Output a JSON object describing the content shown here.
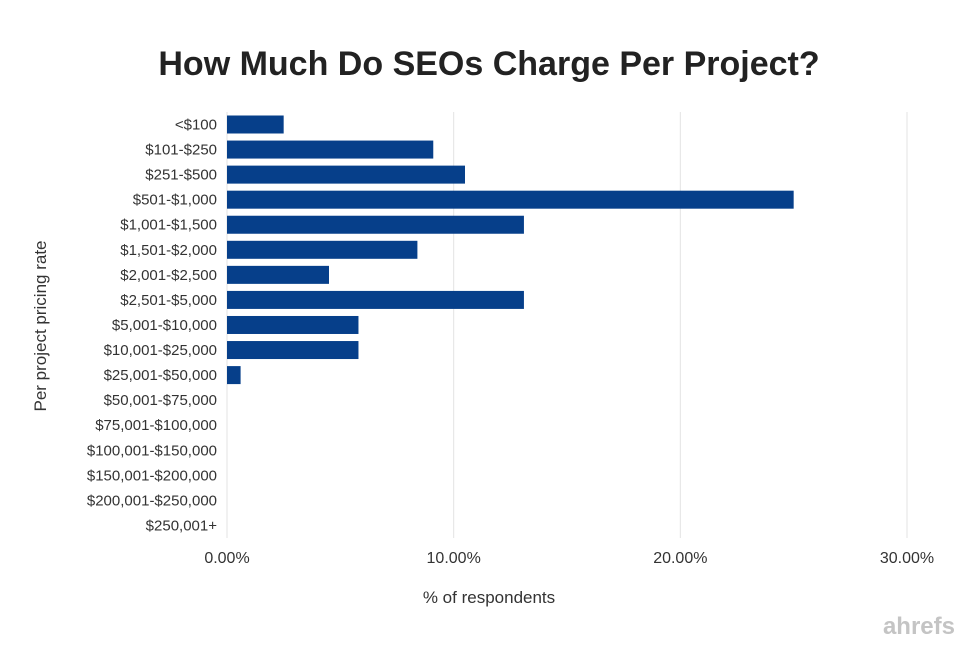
{
  "chart_data": {
    "type": "bar",
    "orientation": "horizontal",
    "title": "How Much Do SEOs Charge Per Project?",
    "xlabel": "% of respondents",
    "ylabel": "Per project pricing rate",
    "categories": [
      "<$100",
      "$101-$250",
      "$251-$500",
      "$501-$1,000",
      "$1,001-$1,500",
      "$1,501-$2,000",
      "$2,001-$2,500",
      "$2,501-$5,000",
      "$5,001-$10,000",
      "$10,001-$25,000",
      "$25,001-$50,000",
      "$50,001-$75,000",
      "$75,001-$100,000",
      "$100,001-$150,000",
      "$150,001-$200,000",
      "$200,001-$250,000",
      "$250,001+"
    ],
    "values": [
      2.5,
      9.1,
      10.5,
      25.0,
      13.1,
      8.4,
      4.5,
      13.1,
      5.8,
      5.8,
      0.6,
      0,
      0,
      0,
      0,
      0,
      0
    ],
    "xlim": [
      0,
      30
    ],
    "xticks": [
      "0.00%",
      "10.00%",
      "20.00%",
      "30.00%"
    ],
    "grid": true,
    "bar_color": "#063f8a",
    "grid_color": "#e3e3e3"
  },
  "branding": {
    "logo_text": "ahrefs"
  }
}
